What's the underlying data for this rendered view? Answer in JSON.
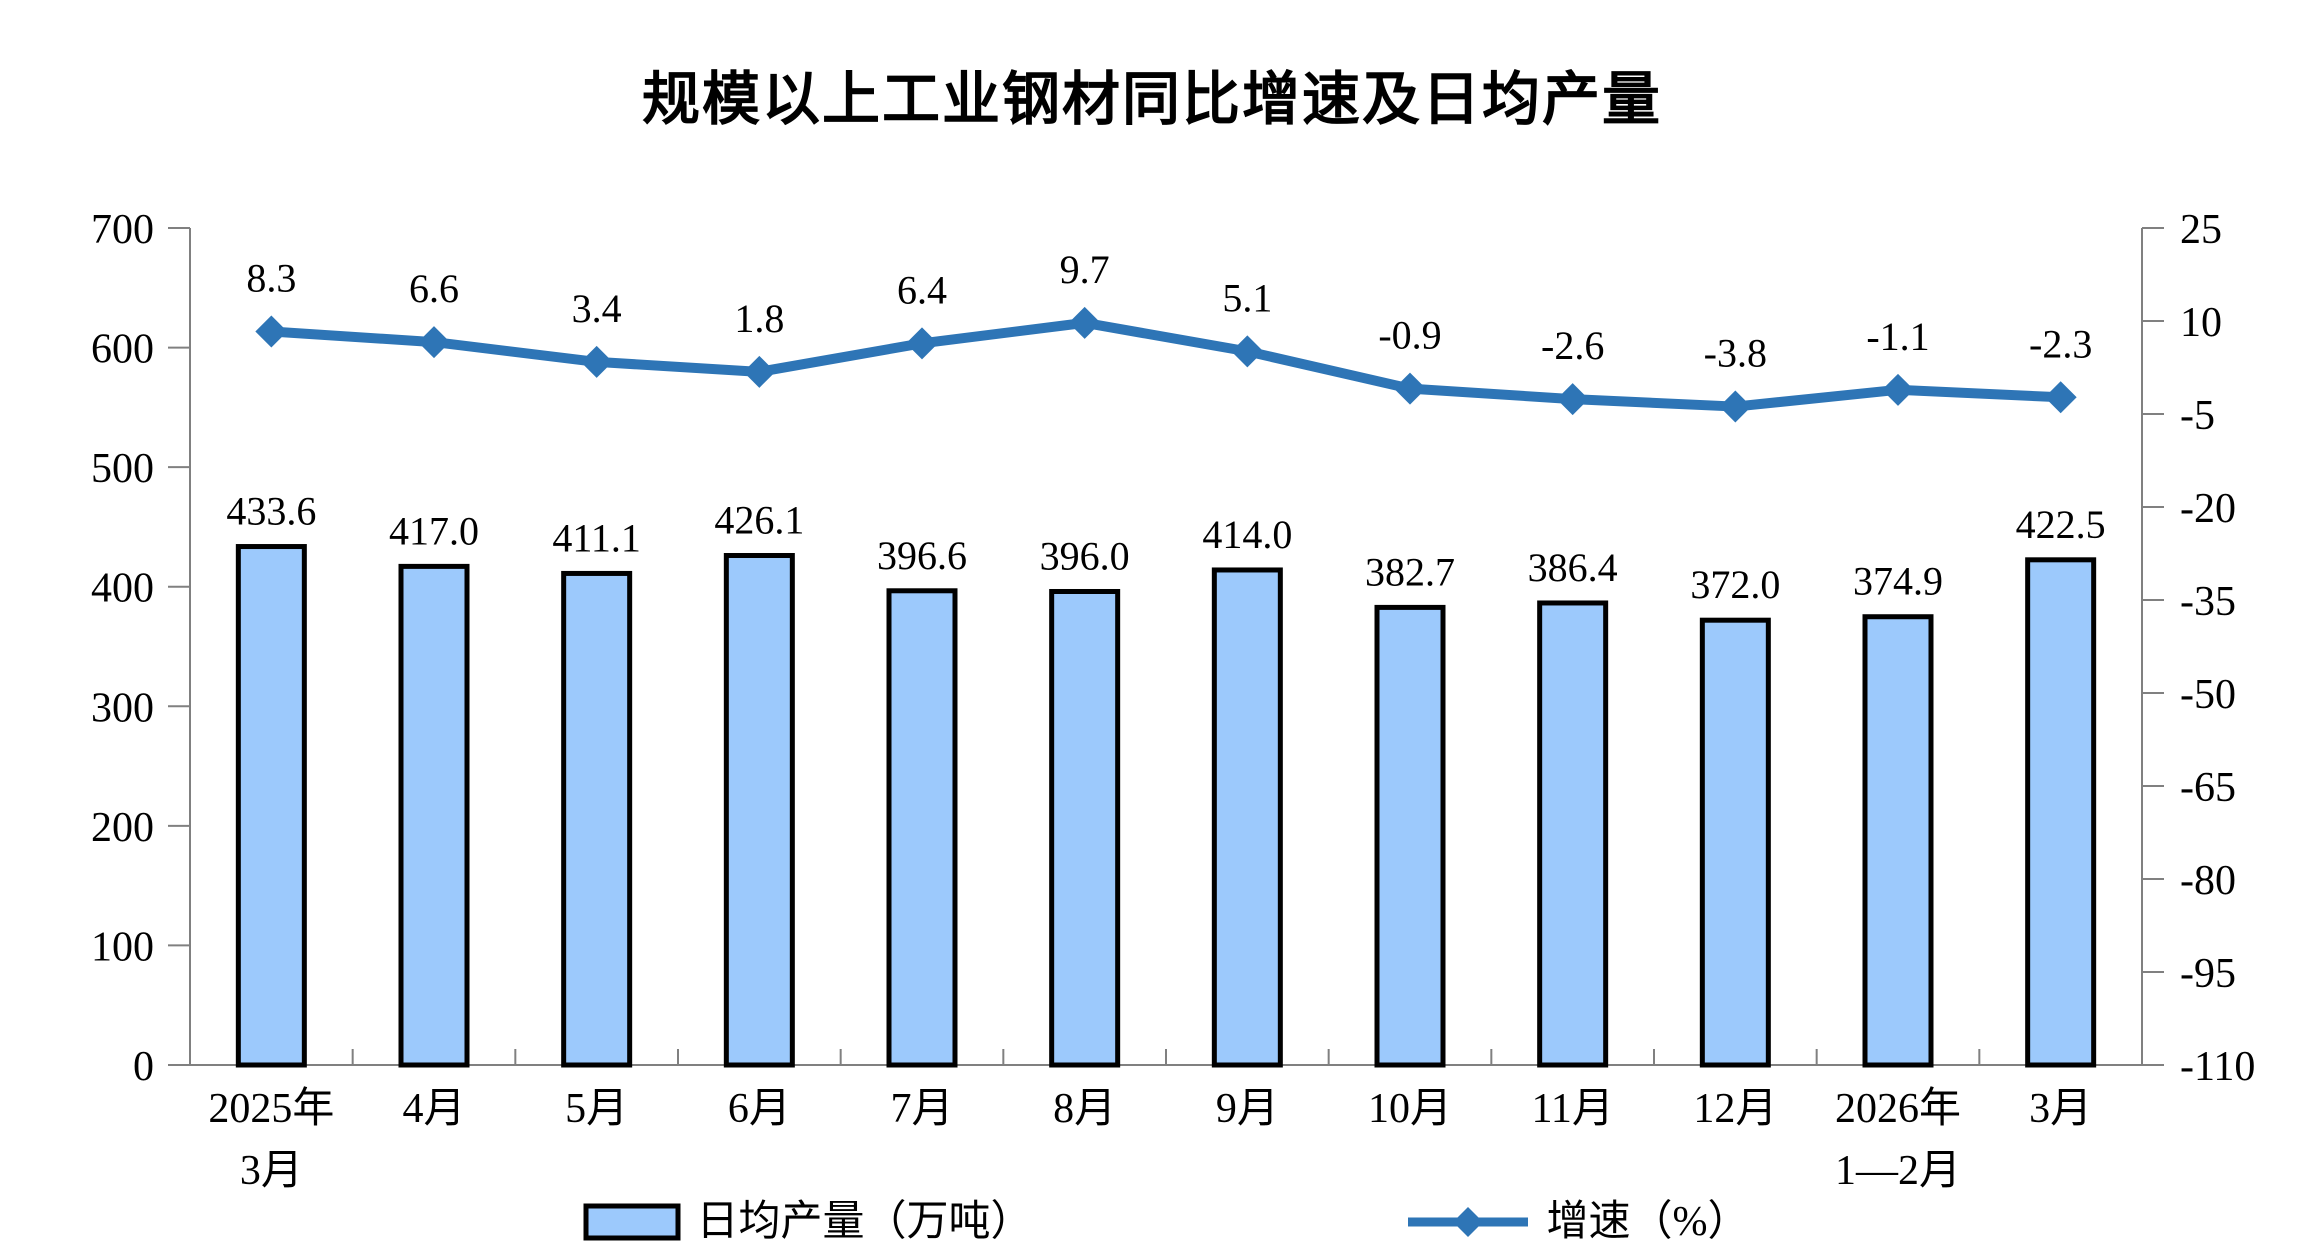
{
  "title": "规模以上工业钢材同比增速及日均产量",
  "chart_data": {
    "type": "bar",
    "subtype": "bar-line-combo",
    "categories": [
      [
        "2025年",
        "3月"
      ],
      [
        "4月"
      ],
      [
        "5月"
      ],
      [
        "6月"
      ],
      [
        "7月"
      ],
      [
        "8月"
      ],
      [
        "9月"
      ],
      [
        "10月"
      ],
      [
        "11月"
      ],
      [
        "12月"
      ],
      [
        "2026年",
        "1—2月"
      ],
      [
        "3月"
      ]
    ],
    "series": [
      {
        "name": "日均产量（万吨）",
        "type": "bar",
        "axis": "left",
        "values": [
          433.6,
          417.0,
          411.1,
          426.1,
          396.6,
          396.0,
          414.0,
          382.7,
          386.4,
          372.0,
          374.9,
          422.5
        ]
      },
      {
        "name": "增速（%）",
        "type": "line",
        "axis": "right",
        "values": [
          8.3,
          6.6,
          3.4,
          1.8,
          6.4,
          9.7,
          5.1,
          -0.9,
          -2.6,
          -3.8,
          -1.1,
          -2.3
        ]
      }
    ],
    "left_axis": {
      "min": 0,
      "max": 700,
      "step": 100
    },
    "right_axis": {
      "min": -110,
      "max": 25,
      "step": 15
    },
    "grid": false,
    "legend_position": "bottom",
    "colors": {
      "bar_fill": "#9CC9FC",
      "bar_stroke": "#000000",
      "line": "#2E75B6",
      "axis": "#808080",
      "text": "#000000"
    }
  }
}
